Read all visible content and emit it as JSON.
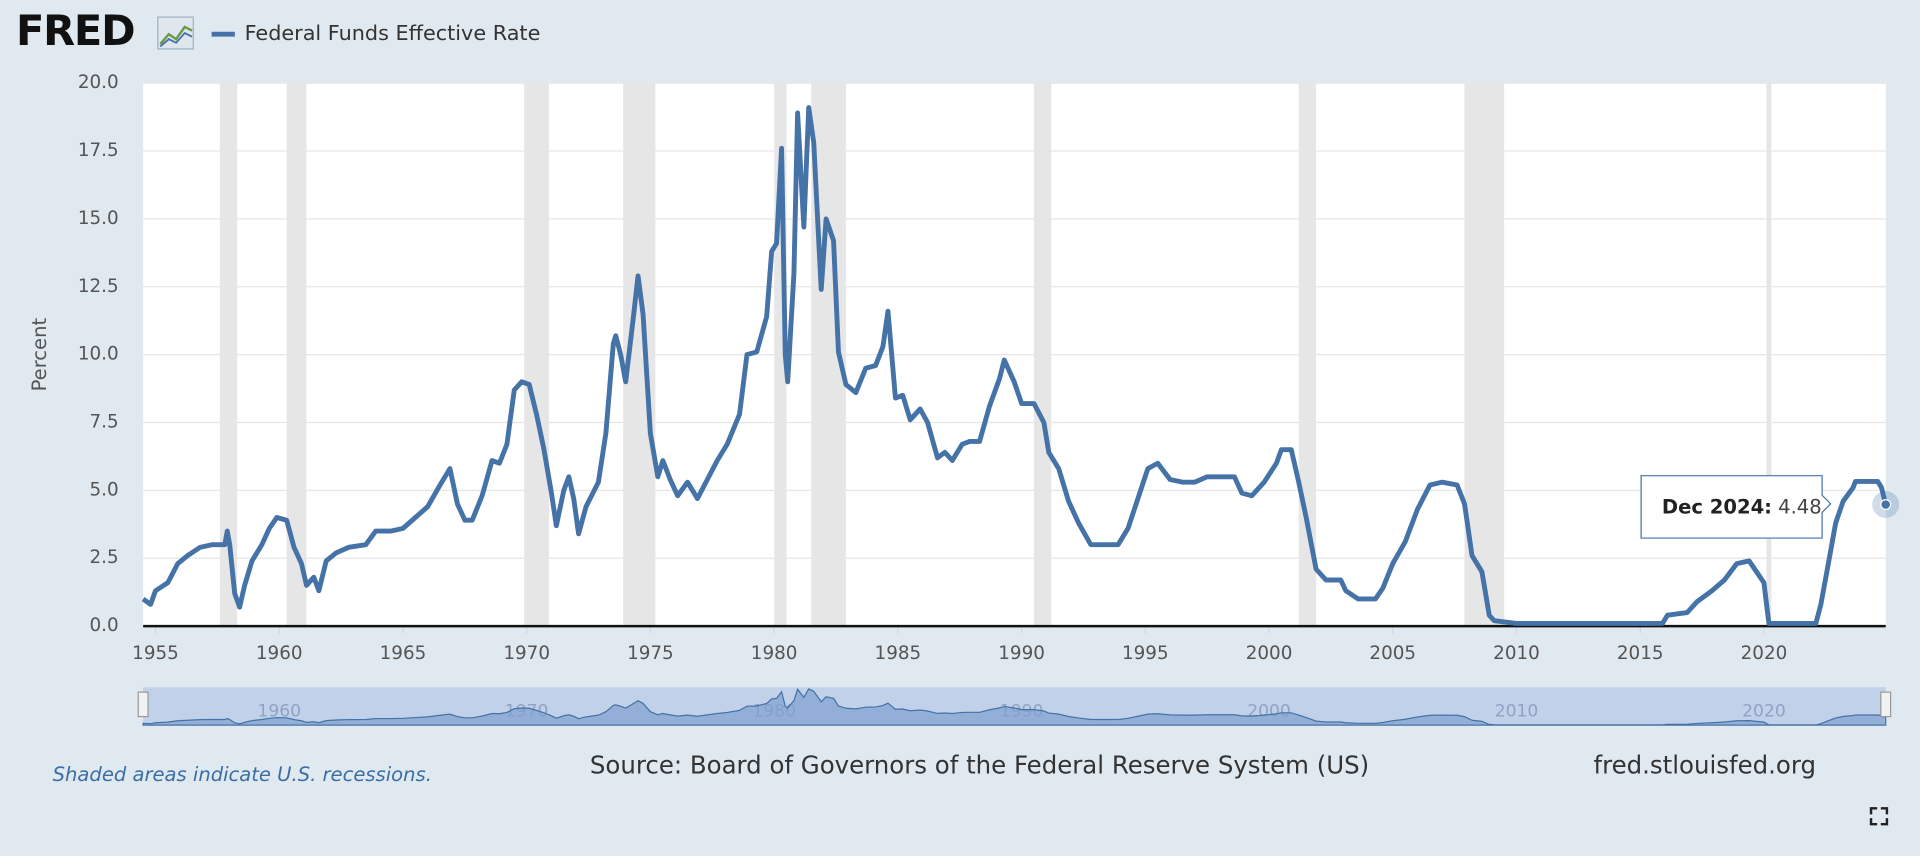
{
  "logo": "FRED",
  "chart_data": {
    "type": "line",
    "y_label": "Percent",
    "series": [
      {
        "name": "Federal Funds Effective Rate",
        "color": "#4572a7",
        "x": [
          1954.5,
          1954.8,
          1955.0,
          1955.5,
          1955.9,
          1956.3,
          1956.8,
          1957.3,
          1957.8,
          1957.9,
          1958.0,
          1958.2,
          1958.4,
          1958.6,
          1958.9,
          1959.3,
          1959.6,
          1959.9,
          1960.3,
          1960.6,
          1960.9,
          1961.1,
          1961.4,
          1961.6,
          1961.9,
          1962.3,
          1962.8,
          1963.5,
          1963.9,
          1964.5,
          1965.0,
          1965.5,
          1966.0,
          1966.5,
          1966.9,
          1967.2,
          1967.5,
          1967.8,
          1968.2,
          1968.6,
          1968.9,
          1969.2,
          1969.5,
          1969.8,
          1970.1,
          1970.4,
          1970.7,
          1971.0,
          1971.2,
          1971.5,
          1971.7,
          1971.9,
          1972.1,
          1972.4,
          1972.9,
          1973.2,
          1973.5,
          1973.6,
          1973.8,
          1974.0,
          1974.3,
          1974.5,
          1974.7,
          1975.0,
          1975.3,
          1975.5,
          1975.8,
          1976.1,
          1976.5,
          1976.9,
          1977.3,
          1977.7,
          1978.1,
          1978.6,
          1978.9,
          1979.3,
          1979.7,
          1979.9,
          1980.1,
          1980.3,
          1980.45,
          1980.55,
          1980.8,
          1980.95,
          1981.2,
          1981.4,
          1981.6,
          1981.9,
          1982.1,
          1982.4,
          1982.6,
          1982.9,
          1983.3,
          1983.7,
          1984.1,
          1984.4,
          1984.6,
          1984.9,
          1985.2,
          1985.5,
          1985.9,
          1986.2,
          1986.6,
          1986.9,
          1987.2,
          1987.6,
          1987.9,
          1988.3,
          1988.7,
          1989.1,
          1989.3,
          1989.7,
          1990.0,
          1990.5,
          1990.9,
          1991.1,
          1991.5,
          1991.9,
          1992.3,
          1992.8,
          1993.5,
          1993.9,
          1994.3,
          1994.7,
          1995.1,
          1995.5,
          1996.0,
          1996.5,
          1997.0,
          1997.5,
          1998.0,
          1998.6,
          1998.9,
          1999.3,
          1999.8,
          2000.3,
          2000.5,
          2000.9,
          2001.2,
          2001.5,
          2001.9,
          2002.3,
          2002.9,
          2003.1,
          2003.6,
          2004.3,
          2004.6,
          2005.0,
          2005.5,
          2006.0,
          2006.5,
          2007.0,
          2007.6,
          2007.9,
          2008.2,
          2008.6,
          2008.9,
          2009.1,
          2010.0,
          2012.0,
          2014.0,
          2015.9,
          2016.1,
          2016.9,
          2017.3,
          2017.9,
          2018.4,
          2018.9,
          2019.4,
          2019.7,
          2020.0,
          2020.2,
          2021.0,
          2022.1,
          2022.3,
          2022.6,
          2022.9,
          2023.2,
          2023.6,
          2023.7,
          2024.6,
          2024.75,
          2024.83,
          2024.92
        ],
        "values": [
          1.0,
          0.8,
          1.3,
          1.6,
          2.3,
          2.6,
          2.9,
          3.0,
          3.0,
          3.5,
          3.0,
          1.2,
          0.7,
          1.5,
          2.4,
          3.0,
          3.6,
          4.0,
          3.9,
          2.9,
          2.3,
          1.5,
          1.8,
          1.3,
          2.4,
          2.7,
          2.9,
          3.0,
          3.5,
          3.5,
          3.6,
          4.0,
          4.4,
          5.2,
          5.8,
          4.5,
          3.9,
          3.9,
          4.8,
          6.1,
          6.0,
          6.7,
          8.7,
          9.0,
          8.9,
          7.8,
          6.5,
          4.9,
          3.7,
          5.0,
          5.5,
          4.7,
          3.4,
          4.4,
          5.3,
          7.1,
          10.4,
          10.7,
          10.0,
          9.0,
          11.3,
          12.9,
          11.5,
          7.1,
          5.5,
          6.1,
          5.4,
          4.8,
          5.3,
          4.7,
          5.4,
          6.1,
          6.7,
          7.8,
          10.0,
          10.1,
          11.4,
          13.8,
          14.1,
          17.6,
          10.0,
          9.0,
          13.0,
          18.9,
          14.7,
          19.1,
          17.8,
          12.4,
          15.0,
          14.2,
          10.1,
          8.9,
          8.6,
          9.5,
          9.6,
          10.3,
          11.6,
          8.4,
          8.5,
          7.6,
          8.0,
          7.5,
          6.2,
          6.4,
          6.1,
          6.7,
          6.8,
          6.8,
          8.1,
          9.1,
          9.8,
          9.0,
          8.2,
          8.2,
          7.5,
          6.4,
          5.8,
          4.6,
          3.8,
          3.0,
          3.0,
          3.0,
          3.6,
          4.7,
          5.8,
          6.0,
          5.4,
          5.3,
          5.3,
          5.5,
          5.5,
          5.5,
          4.9,
          4.8,
          5.3,
          6.0,
          6.5,
          6.5,
          5.3,
          4.0,
          2.1,
          1.7,
          1.7,
          1.3,
          1.0,
          1.0,
          1.4,
          2.3,
          3.1,
          4.3,
          5.2,
          5.3,
          5.2,
          4.5,
          2.6,
          2.0,
          0.4,
          0.2,
          0.1,
          0.1,
          0.1,
          0.1,
          0.4,
          0.5,
          0.9,
          1.3,
          1.7,
          2.3,
          2.4,
          2.0,
          1.6,
          0.1,
          0.1,
          0.1,
          0.8,
          2.3,
          3.8,
          4.6,
          5.1,
          5.33,
          5.33,
          5.1,
          4.8,
          4.48
        ]
      }
    ],
    "xlim": [
      1954.5,
      2024.92
    ],
    "xticks": [
      1955,
      1960,
      1965,
      1970,
      1975,
      1980,
      1985,
      1990,
      1995,
      2000,
      2005,
      2010,
      2015,
      2020
    ],
    "ylim": [
      0,
      20
    ],
    "yticks": [
      {
        "value": 0,
        "label": "0.0"
      },
      {
        "value": 2.5,
        "label": "2.5"
      },
      {
        "value": 5,
        "label": "5.0"
      },
      {
        "value": 7.5,
        "label": "7.5"
      },
      {
        "value": 10,
        "label": "10.0"
      },
      {
        "value": 12.5,
        "label": "12.5"
      },
      {
        "value": 15,
        "label": "15.0"
      },
      {
        "value": 17.5,
        "label": "17.5"
      },
      {
        "value": 20,
        "label": "20.0"
      }
    ],
    "grid": true,
    "recessions": [
      [
        1957.6,
        1958.3
      ],
      [
        1960.3,
        1961.1
      ],
      [
        1969.9,
        1970.9
      ],
      [
        1973.9,
        1975.2
      ],
      [
        1980.0,
        1980.5
      ],
      [
        1981.5,
        1982.9
      ],
      [
        1990.5,
        1991.2
      ],
      [
        2001.2,
        2001.9
      ],
      [
        2007.9,
        2009.5
      ],
      [
        2020.1,
        2020.3
      ]
    ],
    "navigator_ticks": [
      1960,
      1970,
      1980,
      1990,
      2000,
      2010,
      2020
    ],
    "tooltip": {
      "label": "Dec 2024:",
      "value": 4.48
    },
    "note": "Shaded areas indicate U.S. recessions.",
    "source": "Source: Board of Governors of the Federal Reserve System (US)",
    "url": "fred.stlouisfed.org"
  }
}
